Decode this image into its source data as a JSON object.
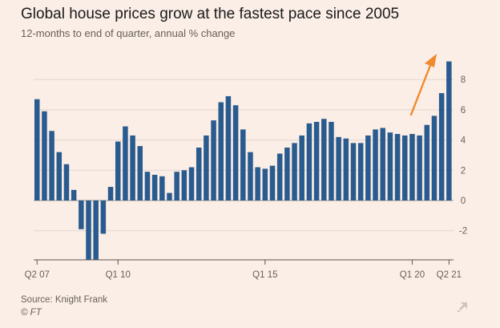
{
  "header": {
    "title": "Global house prices grow at the fastest pace since 2005",
    "subtitle": "12-months to end of quarter, annual % change"
  },
  "footer": {
    "source": "Source: Knight Frank",
    "credit": "© FT",
    "expand_icon": "expand-arrow-icon"
  },
  "colors": {
    "background": "#fbeee6",
    "bar": "#2a5b8f",
    "arrow": "#f08a2f",
    "grid": "#e3d6cd",
    "zero_line": "#9a9590"
  },
  "chart_data": {
    "type": "bar",
    "title": "Global house prices grow at the fastest pace since 2005",
    "subtitle": "12-months to end of quarter, annual % change",
    "xlabel": "",
    "ylabel": "",
    "ylim": [
      -3.9,
      9.3
    ],
    "yticks": [
      -2,
      0,
      2,
      4,
      6,
      8
    ],
    "y_axis_side": "right",
    "grid": true,
    "x_tick_labels": [
      {
        "label": "Q2 07",
        "index": 0
      },
      {
        "label": "Q1 10",
        "index": 11
      },
      {
        "label": "Q1 15",
        "index": 31
      },
      {
        "label": "Q1 20",
        "index": 51
      },
      {
        "label": "Q2 21",
        "index": 56
      }
    ],
    "annotation": "arrow pointing up-right toward latest bar",
    "values": [
      6.7,
      5.9,
      4.6,
      3.2,
      2.4,
      0.7,
      -1.9,
      -3.9,
      -3.9,
      -2.2,
      0.9,
      3.9,
      4.9,
      4.3,
      3.6,
      1.9,
      1.7,
      1.6,
      0.5,
      1.9,
      2.0,
      2.2,
      3.5,
      4.3,
      5.3,
      6.5,
      6.9,
      6.3,
      4.7,
      3.2,
      2.2,
      2.1,
      2.3,
      3.1,
      3.5,
      3.8,
      4.3,
      5.1,
      5.2,
      5.4,
      5.2,
      4.2,
      4.1,
      3.8,
      3.8,
      4.3,
      4.7,
      4.8,
      4.5,
      4.4,
      4.3,
      4.4,
      4.3,
      5.0,
      5.6,
      7.1,
      9.2
    ]
  }
}
